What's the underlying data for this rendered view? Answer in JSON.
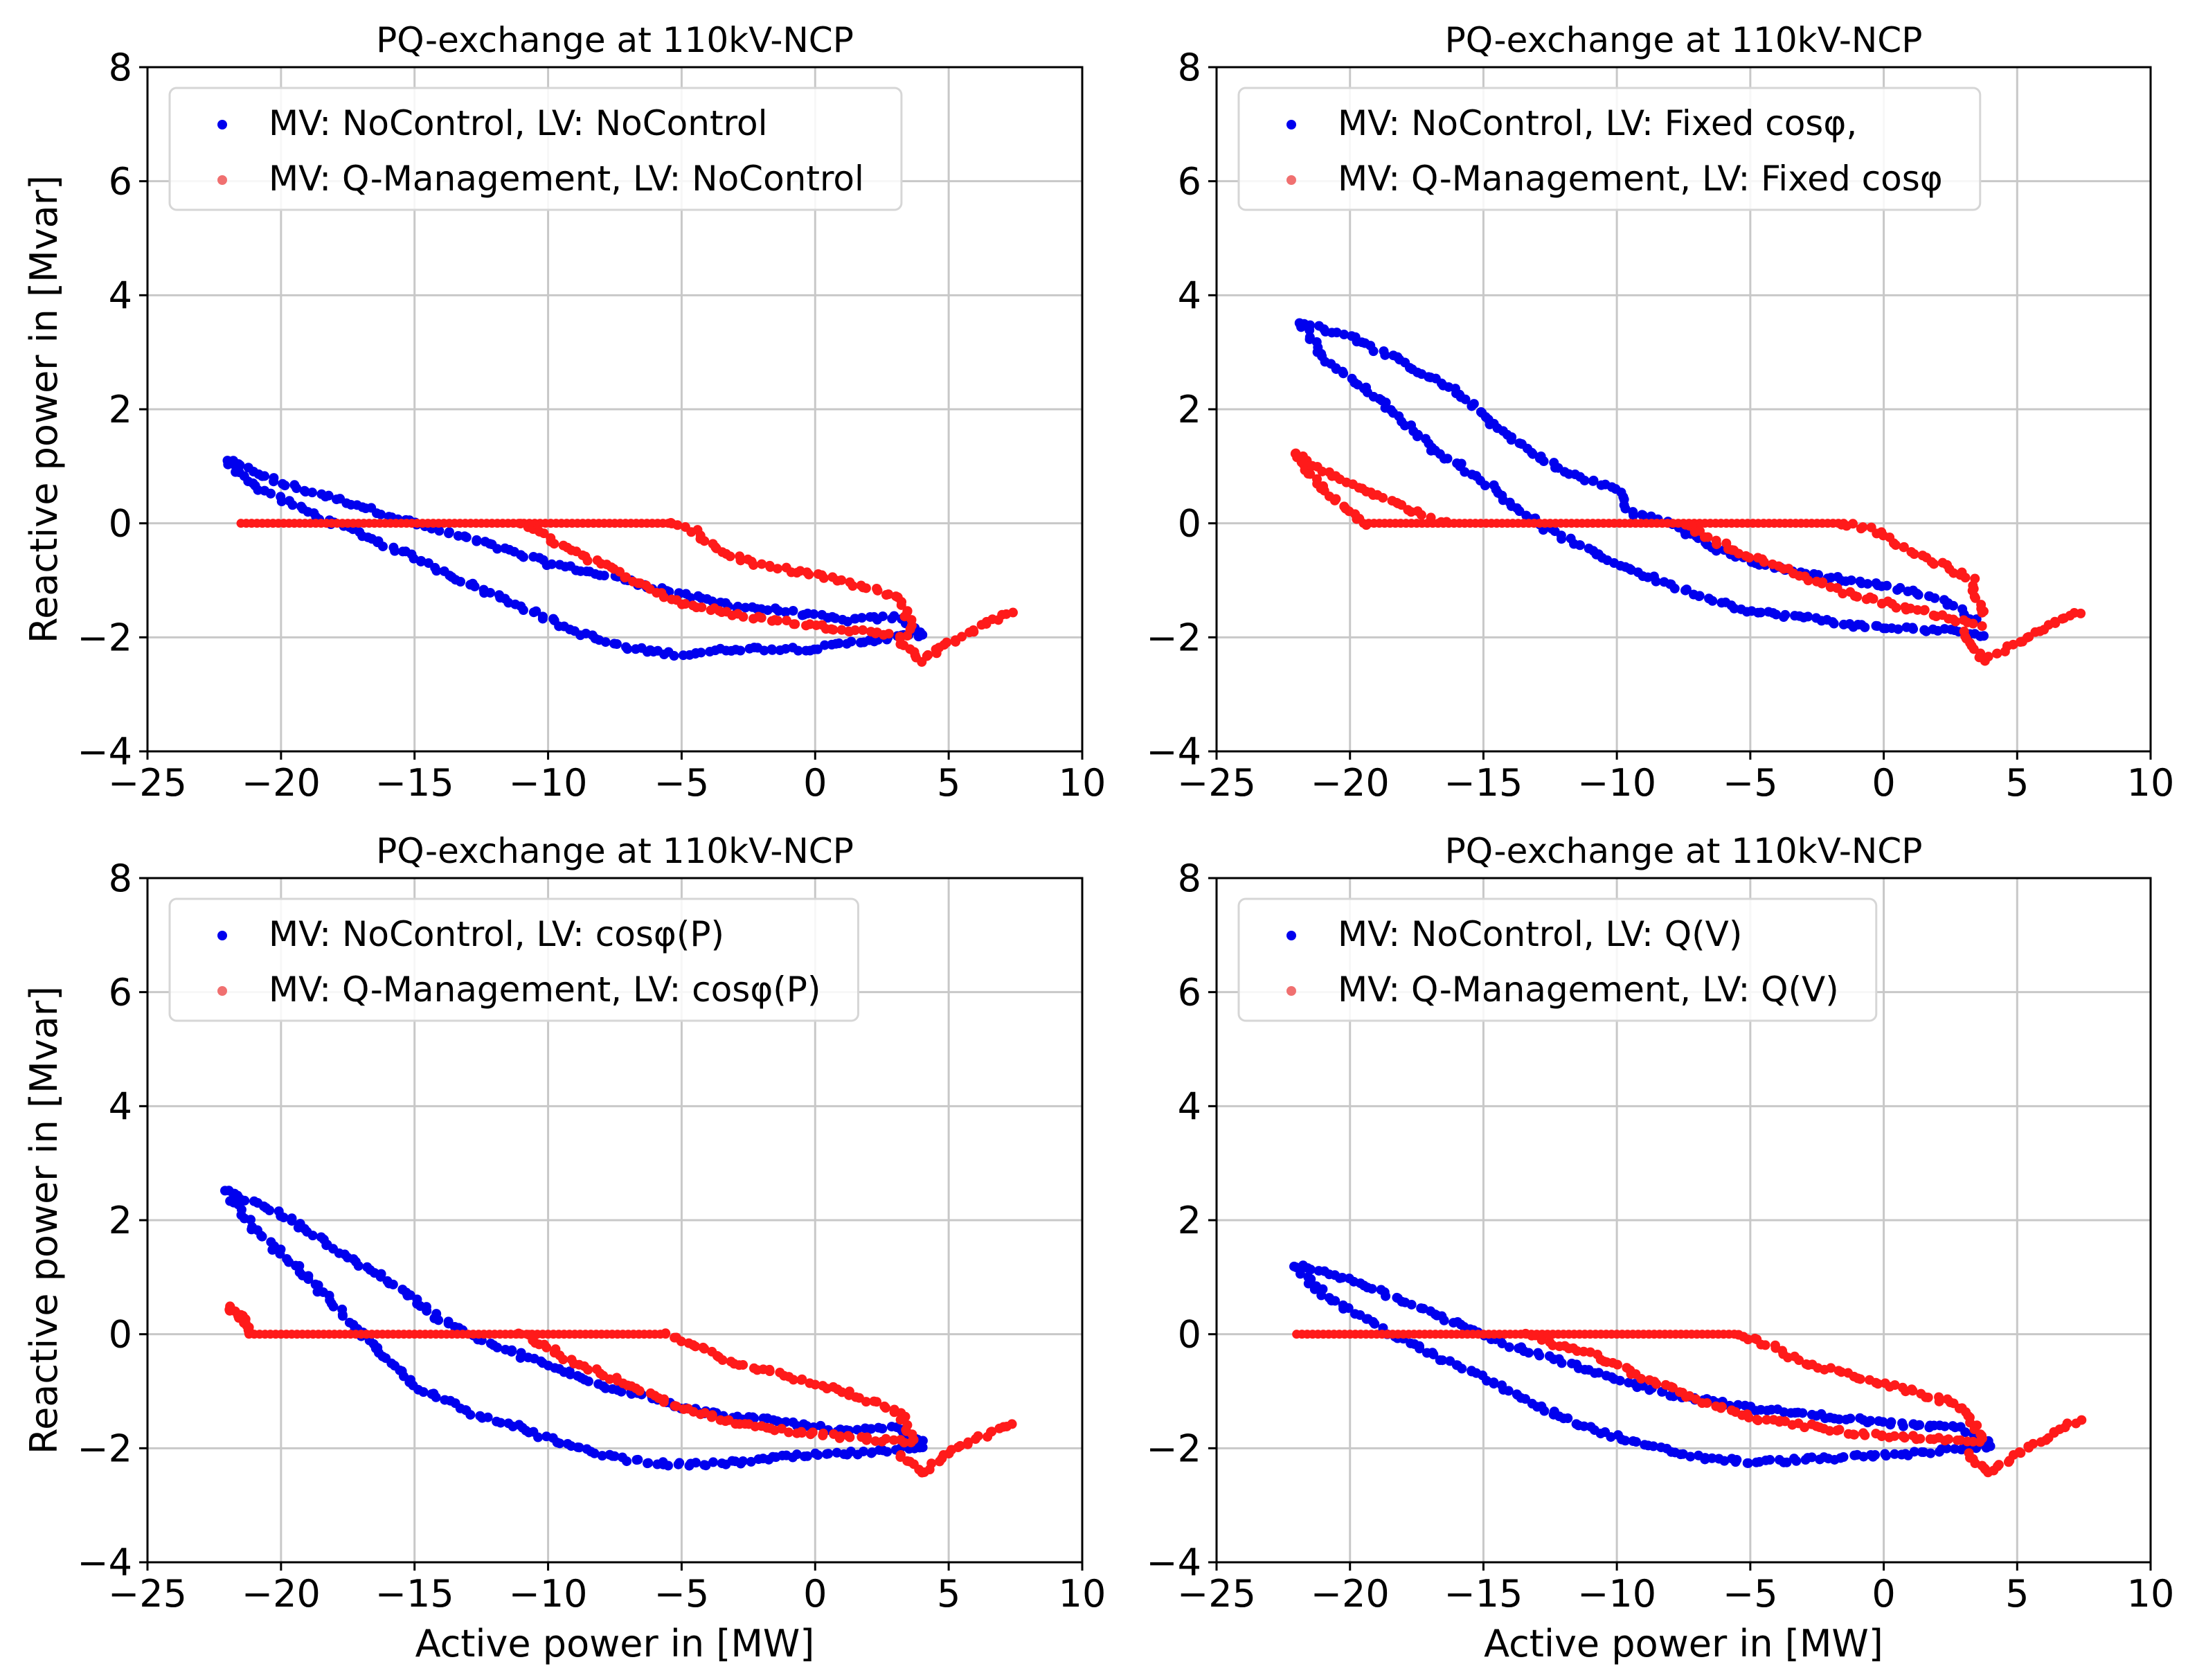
{
  "colors": {
    "series_a": "#0000ee",
    "series_b": "#ff1a1a",
    "series_b_legend": "#f07070"
  },
  "common": {
    "xlabel": "Active power in [MW]",
    "ylabel": "Reactive power in [Mvar]",
    "xlim": [
      -25,
      10
    ],
    "ylim": [
      -4,
      8
    ],
    "xticks": [
      -25,
      -20,
      -15,
      -10,
      -5,
      0,
      5,
      10
    ],
    "xtick_labels": [
      "−25",
      "−20",
      "−15",
      "−10",
      "−5",
      "0",
      "5",
      "10"
    ],
    "yticks": [
      -4,
      -2,
      0,
      2,
      4,
      6,
      8
    ],
    "ytick_labels": [
      "−4",
      "−2",
      "0",
      "2",
      "4",
      "6",
      "8"
    ]
  },
  "chart_data": [
    {
      "type": "scatter",
      "title": "PQ-exchange at 110kV-NCP",
      "legend_position": "upper-left",
      "series": [
        {
          "name": "MV: NoControl, LV: NoControl",
          "upper": [
            [
              -22,
              1.1
            ],
            [
              -20,
              0.7
            ],
            [
              -17,
              0.3
            ],
            [
              -15,
              0.0
            ],
            [
              -12,
              -0.4
            ],
            [
              -10,
              -0.7
            ],
            [
              -7,
              -1.0
            ],
            [
              -5,
              -1.25
            ],
            [
              -3,
              -1.45
            ],
            [
              -1,
              -1.55
            ],
            [
              1,
              -1.7
            ],
            [
              3,
              -1.65
            ],
            [
              4,
              -1.9
            ]
          ],
          "lower": [
            [
              -22,
              1.1
            ],
            [
              -21,
              0.65
            ],
            [
              -19,
              0.2
            ],
            [
              -17,
              -0.2
            ],
            [
              -15,
              -0.6
            ],
            [
              -13,
              -1.05
            ],
            [
              -11,
              -1.45
            ],
            [
              -9,
              -1.9
            ],
            [
              -7,
              -2.2
            ],
            [
              -5,
              -2.3
            ],
            [
              -3,
              -2.2
            ],
            [
              0,
              -2.2
            ],
            [
              2,
              -2.05
            ],
            [
              4,
              -1.95
            ]
          ]
        },
        {
          "name": "MV: Q-Management, LV: NoControl",
          "flat": [
            -21.5,
            -5.5
          ],
          "upper": [
            [
              -5.5,
              0.0
            ],
            [
              -4.5,
              -0.15
            ],
            [
              -3.5,
              -0.5
            ],
            [
              -2,
              -0.75
            ],
            [
              0,
              -0.9
            ],
            [
              2,
              -1.15
            ],
            [
              3.2,
              -1.3
            ],
            [
              3.6,
              -1.85
            ]
          ],
          "lower": [
            [
              -11,
              0.0
            ],
            [
              -9,
              -0.5
            ],
            [
              -7,
              -0.95
            ],
            [
              -5,
              -1.4
            ],
            [
              -3,
              -1.6
            ],
            [
              0,
              -1.8
            ],
            [
              2,
              -1.9
            ],
            [
              3.5,
              -2.0
            ]
          ],
          "tail": [
            [
              3.2,
              -2.1
            ],
            [
              4,
              -2.4
            ],
            [
              5,
              -2.1
            ],
            [
              6,
              -1.85
            ],
            [
              7.3,
              -1.55
            ]
          ]
        }
      ]
    },
    {
      "type": "scatter",
      "title": "PQ-exchange at 110kV-NCP",
      "legend_position": "upper-left",
      "series": [
        {
          "name": "MV: NoControl, LV: Fixed cosφ,",
          "upper": [
            [
              -21.8,
              3.5
            ],
            [
              -20,
              3.3
            ],
            [
              -18,
              2.8
            ],
            [
              -16,
              2.3
            ],
            [
              -14,
              1.5
            ],
            [
              -12,
              0.9
            ],
            [
              -10,
              0.6
            ],
            [
              -9.5,
              0.2
            ],
            [
              -8,
              0.0
            ],
            [
              -6,
              -0.5
            ],
            [
              -4,
              -0.8
            ],
            [
              -2,
              -0.95
            ],
            [
              0,
              -1.1
            ],
            [
              2,
              -1.3
            ],
            [
              3.5,
              -1.7
            ]
          ],
          "lower": [
            [
              -21.8,
              3.5
            ],
            [
              -21,
              2.9
            ],
            [
              -19,
              2.2
            ],
            [
              -17,
              1.35
            ],
            [
              -15,
              0.75
            ],
            [
              -13,
              0.0
            ],
            [
              -11,
              -0.5
            ],
            [
              -9,
              -0.9
            ],
            [
              -7,
              -1.25
            ],
            [
              -5,
              -1.55
            ],
            [
              -3,
              -1.65
            ],
            [
              -1,
              -1.8
            ],
            [
              1,
              -1.85
            ],
            [
              3,
              -1.9
            ],
            [
              3.8,
              -2.0
            ]
          ]
        },
        {
          "name": "MV: Q-Management, LV: Fixed cosφ",
          "flat": [
            -19.5,
            -1.5
          ],
          "upper": [
            [
              -22,
              1.2
            ],
            [
              -20.5,
              0.8
            ],
            [
              -18,
              0.3
            ],
            [
              -16.5,
              0.0
            ]
          ],
          "lower": [
            [
              -22,
              1.2
            ],
            [
              -21,
              0.6
            ],
            [
              -19.5,
              0.0
            ]
          ],
          "upper2": [
            [
              -1.5,
              0.0
            ],
            [
              -0.5,
              -0.1
            ],
            [
              1,
              -0.5
            ],
            [
              2.5,
              -0.8
            ],
            [
              3.3,
              -1.0
            ],
            [
              3.7,
              -1.6
            ]
          ],
          "lower2": [
            [
              -7.5,
              0.0
            ],
            [
              -5.5,
              -0.5
            ],
            [
              -3.5,
              -0.85
            ],
            [
              -1.5,
              -1.2
            ],
            [
              0.5,
              -1.45
            ],
            [
              2,
              -1.6
            ],
            [
              3.6,
              -1.8
            ]
          ],
          "tail": [
            [
              3,
              -1.9
            ],
            [
              3.8,
              -2.4
            ],
            [
              5,
              -2.1
            ],
            [
              6,
              -1.85
            ],
            [
              7.3,
              -1.55
            ]
          ]
        }
      ]
    },
    {
      "type": "scatter",
      "title": "PQ-exchange at 110kV-NCP",
      "legend_position": "upper-left",
      "series": [
        {
          "name": "MV: NoControl, LV: cosφ(P)",
          "upper": [
            [
              -22,
              2.5
            ],
            [
              -20,
              2.1
            ],
            [
              -18,
              1.5
            ],
            [
              -16,
              0.95
            ],
            [
              -14,
              0.25
            ],
            [
              -12,
              -0.2
            ],
            [
              -10,
              -0.55
            ],
            [
              -8,
              -0.9
            ],
            [
              -6,
              -1.1
            ],
            [
              -5,
              -1.3
            ],
            [
              -3,
              -1.45
            ],
            [
              -1,
              -1.55
            ],
            [
              1,
              -1.7
            ],
            [
              3,
              -1.65
            ],
            [
              4,
              -1.9
            ]
          ],
          "lower": [
            [
              -22,
              2.5
            ],
            [
              -21,
              1.85
            ],
            [
              -19,
              1.0
            ],
            [
              -17,
              0.0
            ],
            [
              -15,
              -0.9
            ],
            [
              -13,
              -1.35
            ],
            [
              -11,
              -1.65
            ],
            [
              -9,
              -2.0
            ],
            [
              -7,
              -2.2
            ],
            [
              -5,
              -2.3
            ],
            [
              -3,
              -2.25
            ],
            [
              -1,
              -2.15
            ],
            [
              1,
              -2.1
            ],
            [
              3,
              -2.05
            ],
            [
              4,
              -1.95
            ]
          ]
        },
        {
          "name": "MV: Q-Management, LV: cosφ(P)",
          "flat": [
            -21.2,
            -5.5
          ],
          "upper": [
            [
              -22,
              0.5
            ],
            [
              -21.5,
              0.3
            ],
            [
              -21.2,
              0.0
            ]
          ],
          "lower": [
            [
              -22,
              0.5
            ],
            [
              -21.3,
              0.1
            ]
          ],
          "upper2": [
            [
              -5.5,
              0.0
            ],
            [
              -4.5,
              -0.2
            ],
            [
              -3,
              -0.5
            ],
            [
              -1,
              -0.75
            ],
            [
              1,
              -1.0
            ],
            [
              2.5,
              -1.25
            ],
            [
              3.2,
              -1.4
            ],
            [
              3.6,
              -1.85
            ]
          ],
          "lower2": [
            [
              -11,
              0.0
            ],
            [
              -9,
              -0.5
            ],
            [
              -7,
              -0.9
            ],
            [
              -5,
              -1.3
            ],
            [
              -3,
              -1.55
            ],
            [
              -1,
              -1.7
            ],
            [
              1,
              -1.8
            ],
            [
              3.5,
              -1.9
            ]
          ],
          "tail": [
            [
              3.2,
              -2.1
            ],
            [
              4,
              -2.45
            ],
            [
              5,
              -2.1
            ],
            [
              6,
              -1.85
            ],
            [
              7.3,
              -1.55
            ]
          ]
        }
      ]
    },
    {
      "type": "scatter",
      "title": "PQ-exchange at 110kV-NCP",
      "legend_position": "upper-left",
      "series": [
        {
          "name": "MV: NoControl, LV: Q(V)",
          "upper": [
            [
              -22,
              1.2
            ],
            [
              -20,
              0.95
            ],
            [
              -18,
              0.6
            ],
            [
              -16,
              0.2
            ],
            [
              -14,
              -0.2
            ],
            [
              -12,
              -0.5
            ],
            [
              -10,
              -0.8
            ],
            [
              -8,
              -1.05
            ],
            [
              -6,
              -1.2
            ],
            [
              -5,
              -1.3
            ],
            [
              -3,
              -1.4
            ],
            [
              -1,
              -1.5
            ],
            [
              1,
              -1.6
            ],
            [
              3,
              -1.65
            ],
            [
              4,
              -1.9
            ]
          ],
          "lower": [
            [
              -22,
              1.2
            ],
            [
              -21,
              0.7
            ],
            [
              -19,
              0.15
            ],
            [
              -17,
              -0.35
            ],
            [
              -15,
              -0.75
            ],
            [
              -13,
              -1.25
            ],
            [
              -11,
              -1.65
            ],
            [
              -9,
              -1.95
            ],
            [
              -7,
              -2.15
            ],
            [
              -5,
              -2.25
            ],
            [
              -3,
              -2.2
            ],
            [
              -1,
              -2.15
            ],
            [
              1,
              -2.1
            ],
            [
              3,
              -2.0
            ],
            [
              4,
              -1.95
            ]
          ]
        },
        {
          "name": "MV: Q-Management, LV: Q(V)",
          "flat": [
            -22,
            -5.5
          ],
          "upper": [],
          "lower": [],
          "upper2": [
            [
              -5.5,
              0.0
            ],
            [
              -4.5,
              -0.15
            ],
            [
              -3,
              -0.5
            ],
            [
              -1,
              -0.75
            ],
            [
              1,
              -1.0
            ],
            [
              2.5,
              -1.2
            ],
            [
              3.2,
              -1.35
            ],
            [
              3.6,
              -1.85
            ]
          ],
          "lower2": [
            [
              -13.5,
              0.0
            ],
            [
              -11,
              -0.35
            ],
            [
              -9,
              -0.75
            ],
            [
              -7,
              -1.15
            ],
            [
              -5,
              -1.45
            ],
            [
              -3,
              -1.6
            ],
            [
              -1,
              -1.75
            ],
            [
              1,
              -1.8
            ],
            [
              3.5,
              -1.9
            ]
          ],
          "tail": [
            [
              3.2,
              -2.1
            ],
            [
              4,
              -2.45
            ],
            [
              5,
              -2.1
            ],
            [
              6,
              -1.85
            ],
            [
              7.3,
              -1.5
            ]
          ]
        }
      ]
    }
  ]
}
